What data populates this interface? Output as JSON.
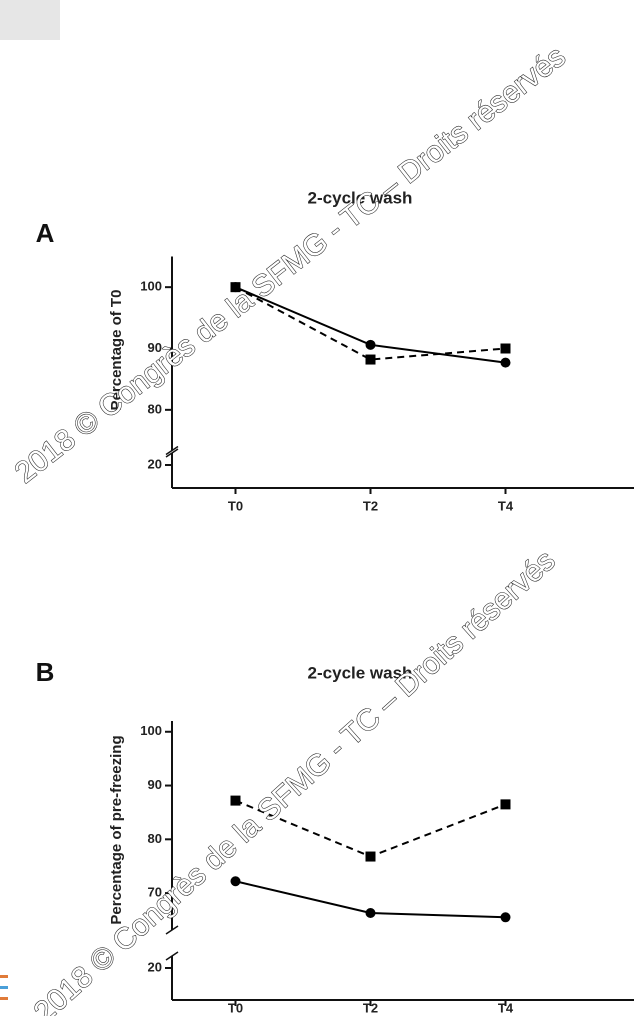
{
  "chart_data": [
    {
      "type": "line",
      "panel": "A",
      "title": "2-cycle wash",
      "y_label": "Percentage of T0",
      "categories": [
        "T0",
        "T2",
        "T4"
      ],
      "series": [
        {
          "color": "#000000",
          "marker": "circle",
          "dashed": false,
          "values": [
            100,
            90.6,
            87.7
          ]
        },
        {
          "color": "#000000",
          "marker": "square",
          "dashed": true,
          "values": [
            100,
            88.2,
            90
          ]
        }
      ],
      "ylim": [
        75,
        105
      ],
      "yticks": [
        20,
        80,
        90,
        100
      ],
      "axis_break": true
    },
    {
      "type": "line",
      "panel": "B",
      "title": "2-cycle wash",
      "y_label": "Percentage of pre-freezing",
      "categories": [
        "T0",
        "T2",
        "T4"
      ],
      "series": [
        {
          "color": "#000000",
          "marker": "square",
          "dashed": true,
          "values": [
            87.2,
            76.8,
            86.5
          ]
        },
        {
          "color": "#000000",
          "marker": "circle",
          "dashed": false,
          "values": [
            72.2,
            66.3,
            65.5
          ]
        }
      ],
      "ylim": [
        65,
        102
      ],
      "yticks": [
        20,
        70,
        80,
        90,
        100
      ],
      "axis_break": true
    }
  ],
  "watermark": [
    "2018 © Congrès de la SFMG - TC – Droits réservés",
    "2018 © Congrès de la SFMG - TC – Droits réservés"
  ]
}
